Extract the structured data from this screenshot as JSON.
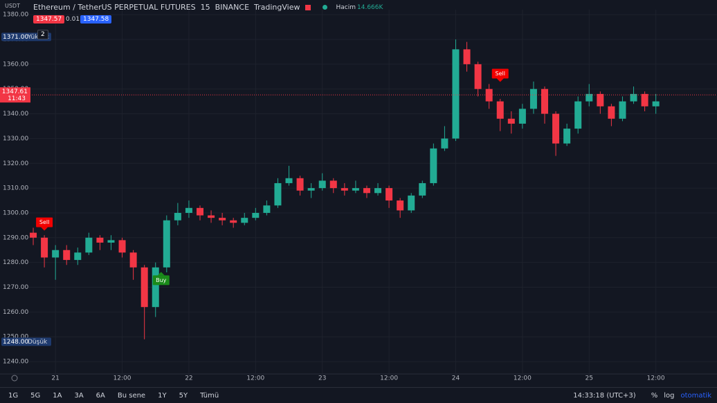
{
  "header": {
    "symbol": "Ethereum / TetherUS PERPETUAL FUTURES",
    "interval": "15",
    "exchange": "BINANCE",
    "source": "TradingView",
    "volume_label": "Hacim",
    "volume_value": "14.666K",
    "bid": "1347.57",
    "spread": "0.01",
    "ask": "1347.58",
    "currency": "USDT",
    "indicators_count": "2"
  },
  "toolbar": {
    "ranges": [
      "1G",
      "5G",
      "1A",
      "3A",
      "6A",
      "Bu sene",
      "1Y",
      "5Y",
      "Tümü"
    ],
    "clock": "14:33:18 (UTC+3)",
    "percent": "%",
    "log": "log",
    "auto": "otomatik"
  },
  "chart_data": {
    "type": "candlestick",
    "up_color": "#22ab94",
    "down_color": "#f23645",
    "grid": true,
    "xlim": [
      -5,
      119
    ],
    "ylim": [
      1235,
      1382
    ],
    "xticks": [
      {
        "value": 0,
        "label": "21"
      },
      {
        "value": 12,
        "label": "12:00"
      },
      {
        "value": 24,
        "label": "22"
      },
      {
        "value": 36,
        "label": "12:00"
      },
      {
        "value": 48,
        "label": "23"
      },
      {
        "value": 60,
        "label": "12:00"
      },
      {
        "value": 72,
        "label": "24"
      },
      {
        "value": 84,
        "label": "12:00"
      },
      {
        "value": 96,
        "label": "25"
      },
      {
        "value": 108,
        "label": "12:00"
      }
    ],
    "yticks": [
      {
        "value": 1240,
        "label": "1240.00"
      },
      {
        "value": 1250,
        "label": "1250.00"
      },
      {
        "value": 1260,
        "label": "1260.00"
      },
      {
        "value": 1270,
        "label": "1270.00"
      },
      {
        "value": 1280,
        "label": "1280.00"
      },
      {
        "value": 1290,
        "label": "1290.00"
      },
      {
        "value": 1300,
        "label": "1300.00"
      },
      {
        "value": 1310,
        "label": "1310.00"
      },
      {
        "value": 1320,
        "label": "1320.00"
      },
      {
        "value": 1330,
        "label": "1330.00"
      },
      {
        "value": 1340,
        "label": "1340.00"
      },
      {
        "value": 1350,
        "label": "1350.00"
      },
      {
        "value": 1360,
        "label": "1360.00"
      },
      {
        "value": 1370,
        "label": "1370.00"
      },
      {
        "value": 1380,
        "label": "1380.00"
      }
    ],
    "x": [
      -4,
      -2,
      0,
      2,
      4,
      6,
      8,
      10,
      12,
      14,
      16,
      18,
      20,
      22,
      24,
      26,
      28,
      30,
      32,
      34,
      36,
      38,
      40,
      42,
      44,
      46,
      48,
      50,
      52,
      54,
      56,
      58,
      60,
      62,
      64,
      66,
      68,
      70,
      72,
      74,
      76,
      78,
      80,
      82,
      84,
      86,
      88,
      90,
      92,
      94,
      96,
      98,
      100,
      102,
      104,
      106,
      108
    ],
    "open": [
      1292,
      1290,
      1282,
      1285,
      1281,
      1284,
      1290,
      1288,
      1289,
      1284,
      1278,
      1262,
      1278,
      1297,
      1300,
      1302,
      1299,
      1298,
      1297,
      1296,
      1298,
      1300,
      1303,
      1312,
      1314,
      1309,
      1310,
      1313,
      1310,
      1309,
      1310,
      1308,
      1310,
      1305,
      1301,
      1307,
      1312,
      1326,
      1330,
      1366,
      1360,
      1350,
      1345,
      1338,
      1336,
      1342,
      1350,
      1340,
      1328,
      1334,
      1345,
      1348,
      1343,
      1338,
      1345,
      1348,
      1343
    ],
    "high": [
      1294,
      1291,
      1287,
      1287,
      1286,
      1292,
      1291,
      1291,
      1290,
      1285,
      1279,
      1280,
      1299,
      1304,
      1305,
      1303,
      1301,
      1300,
      1298,
      1300,
      1302,
      1305,
      1314,
      1319,
      1315,
      1312,
      1316,
      1314,
      1312,
      1313,
      1311,
      1312,
      1311,
      1306,
      1308,
      1313,
      1328,
      1335,
      1370,
      1369,
      1361,
      1352,
      1346,
      1341,
      1344,
      1353,
      1351,
      1341,
      1336,
      1347,
      1352,
      1349,
      1344,
      1347,
      1351,
      1349,
      1348
    ],
    "low": [
      1287,
      1278,
      1273,
      1279,
      1279,
      1283,
      1285,
      1285,
      1282,
      1273,
      1249,
      1258,
      1276,
      1295,
      1298,
      1297,
      1296,
      1295,
      1294,
      1295,
      1297,
      1299,
      1302,
      1311,
      1307,
      1306,
      1309,
      1308,
      1307,
      1308,
      1306,
      1307,
      1302,
      1298,
      1300,
      1306,
      1311,
      1325,
      1329,
      1357,
      1347,
      1342,
      1333,
      1332,
      1334,
      1340,
      1336,
      1323,
      1327,
      1332,
      1343,
      1340,
      1335,
      1337,
      1344,
      1341,
      1340
    ],
    "close": [
      1290,
      1282,
      1285,
      1281,
      1284,
      1290,
      1288,
      1289,
      1284,
      1278,
      1262,
      1278,
      1297,
      1300,
      1302,
      1299,
      1298,
      1297,
      1296,
      1298,
      1300,
      1303,
      1312,
      1314,
      1309,
      1310,
      1313,
      1310,
      1309,
      1310,
      1308,
      1310,
      1305,
      1301,
      1307,
      1312,
      1326,
      1330,
      1366,
      1360,
      1350,
      1345,
      1338,
      1336,
      1342,
      1350,
      1340,
      1328,
      1334,
      1345,
      1348,
      1343,
      1338,
      1345,
      1348,
      1343,
      1345
    ],
    "annotations": [
      {
        "text": "Sell",
        "x": -2,
        "y": 1292,
        "side": "above"
      },
      {
        "text": "Buy",
        "x": 19,
        "y": 1277,
        "side": "below"
      },
      {
        "text": "Sell",
        "x": 80,
        "y": 1352,
        "side": "above"
      }
    ],
    "last_price": {
      "value": 1347.61,
      "label": "1347.61",
      "time": "11:43"
    },
    "high_line": {
      "value": 1371,
      "label": "1371.00",
      "text": "Yüksek"
    },
    "low_line": {
      "value": 1248,
      "label": "1248.00",
      "text": "Düşük"
    }
  }
}
